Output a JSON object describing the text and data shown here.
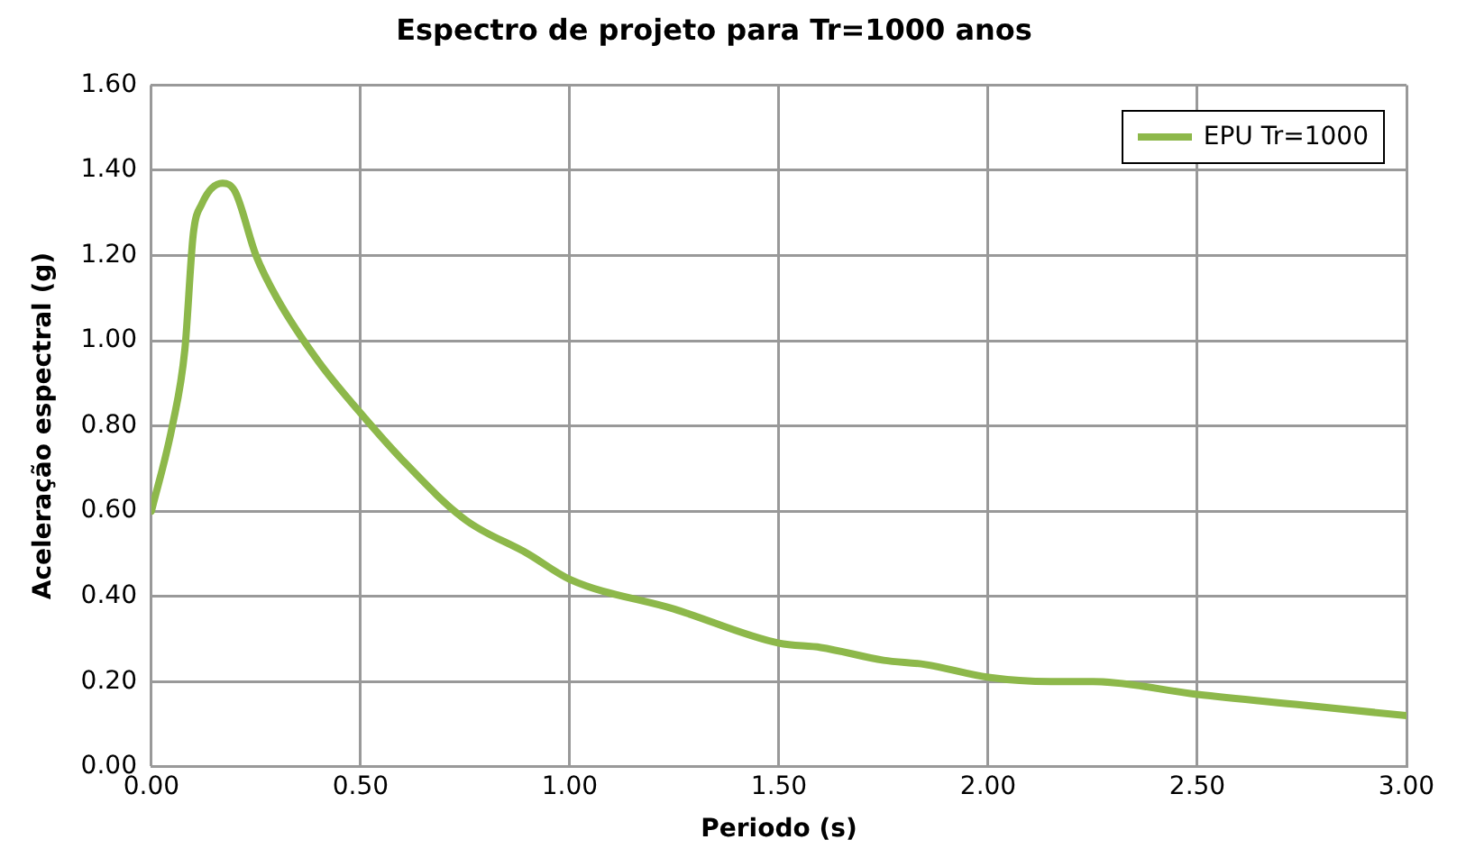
{
  "chart_data": {
    "type": "line",
    "title": "Espectro de projeto para Tr=1000 anos",
    "xlabel": "Periodo (s)",
    "ylabel": "Aceleração espectral (g)",
    "x": [
      0,
      0.05,
      0.08,
      0.1,
      0.12,
      0.17,
      0.2,
      0.25,
      0.3,
      0.4,
      0.5,
      0.6,
      0.75,
      0.9,
      1.0,
      1.25,
      1.5,
      1.6,
      1.75,
      1.85,
      2.0,
      2.15,
      2.25,
      2.5,
      2.75,
      3.0
    ],
    "series": [
      {
        "name": "EPU Tr=1000",
        "color": "#8db84a",
        "values": [
          0.6,
          0.8,
          0.98,
          1.25,
          1.32,
          1.37,
          1.35,
          1.2,
          1.1,
          0.95,
          0.83,
          0.72,
          0.58,
          0.5,
          0.44,
          0.37,
          0.29,
          0.28,
          0.25,
          0.24,
          0.21,
          0.2,
          0.2,
          0.17,
          0.145,
          0.12
        ]
      }
    ],
    "xlim": [
      0,
      3
    ],
    "xticks": [
      {
        "value": 0,
        "label": "0.00"
      },
      {
        "value": 0.5,
        "label": "0.50"
      },
      {
        "value": 1,
        "label": "1.00"
      },
      {
        "value": 1.5,
        "label": "1.50"
      },
      {
        "value": 2,
        "label": "2.00"
      },
      {
        "value": 2.5,
        "label": "2.50"
      },
      {
        "value": 3,
        "label": "3.00"
      }
    ],
    "ylim": [
      0,
      1.6
    ],
    "yticks": [
      {
        "value": 0,
        "label": "0.00"
      },
      {
        "value": 0.2,
        "label": "0.20"
      },
      {
        "value": 0.4,
        "label": "0.40"
      },
      {
        "value": 0.6,
        "label": "0.60"
      },
      {
        "value": 0.8,
        "label": "0.80"
      },
      {
        "value": 1,
        "label": "1.00"
      },
      {
        "value": 1.2,
        "label": "1.20"
      },
      {
        "value": 1.4,
        "label": "1.40"
      },
      {
        "value": 1.6,
        "label": "1.60"
      }
    ],
    "grid": true,
    "legend": "top right",
    "marker": "none",
    "line_style": "solid"
  }
}
